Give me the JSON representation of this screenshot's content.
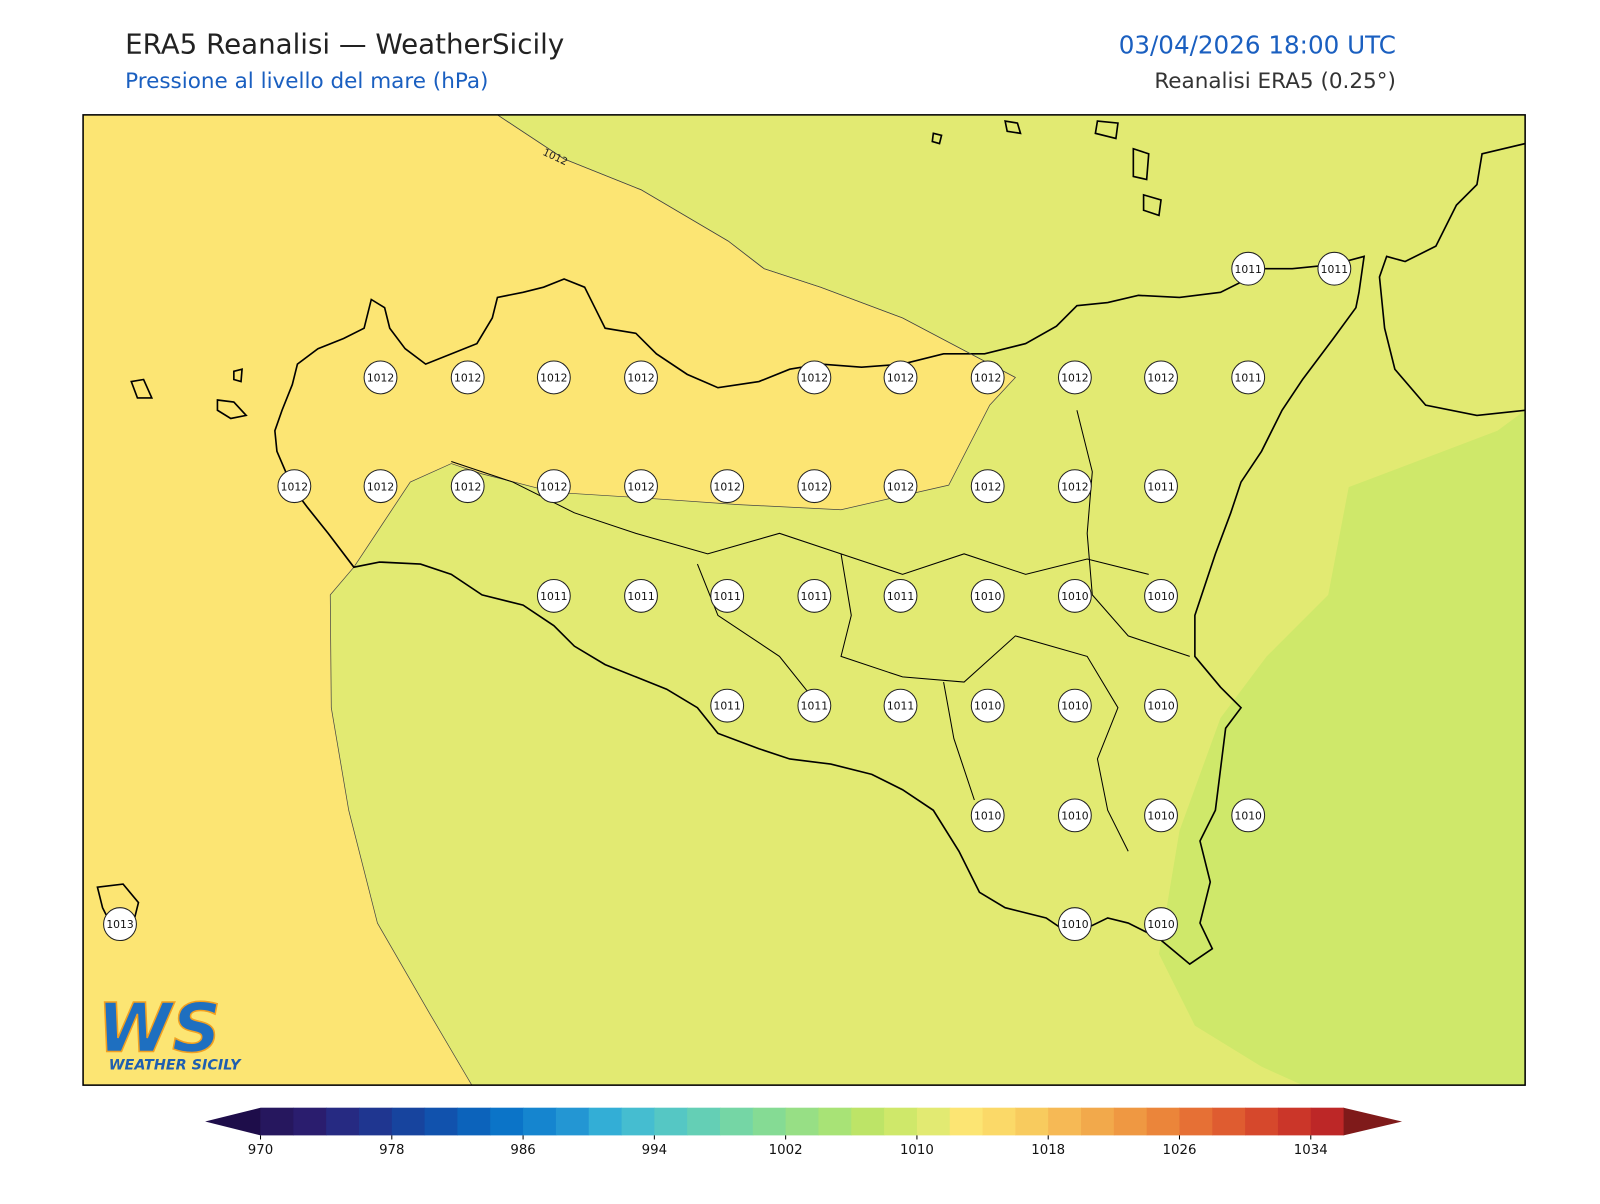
{
  "header": {
    "title": "ERA5 Reanalisi — WeatherSicily",
    "subtitle": "Pressione al livello del mare (hPa)",
    "datetime": "03/04/2026 18:00 UTC",
    "source": "Reanalisi ERA5 (0.25°)"
  },
  "contour_label": 1012,
  "stations": [
    1011,
    1011,
    1012,
    1012,
    1012,
    1012,
    1012,
    1012,
    1012,
    1012,
    1012,
    1011,
    1012,
    1012,
    1012,
    1012,
    1012,
    1012,
    1012,
    1012,
    1012,
    1012,
    1011,
    1011,
    1011,
    1011,
    1011,
    1011,
    1010,
    1010,
    1010,
    1011,
    1011,
    1011,
    1010,
    1010,
    1010,
    1010,
    1010,
    1010,
    1010,
    1013,
    1010,
    1010
  ],
  "logo": {
    "text": "WS",
    "caption": "WEATHER SICILY"
  },
  "colorbar": {
    "lim": [
      970,
      1036
    ],
    "step": 2,
    "ticks": [
      970,
      978,
      986,
      994,
      1002,
      1010,
      1018,
      1026,
      1034
    ],
    "colors": [
      "#26175e",
      "#2a1d6e",
      "#262a82",
      "#1f3690",
      "#17449e",
      "#1152ad",
      "#0c63bb",
      "#0b74c8",
      "#1585cf",
      "#2396d3",
      "#33aed6",
      "#45bdd0",
      "#55c7c4",
      "#64cfb5",
      "#75d6a5",
      "#85db94",
      "#97df85",
      "#a8e376",
      "#bde467",
      "#cfe86a",
      "#e2ea72",
      "#fce573",
      "#fbd968",
      "#f8cb5e",
      "#f6b955",
      "#f2a94b",
      "#ef9842",
      "#eb853a",
      "#e67035",
      "#df5c30",
      "#d6482c",
      "#cb3629",
      "#bd2727"
    ],
    "under": "#1e0d4a",
    "over": "#7f1a1a"
  }
}
